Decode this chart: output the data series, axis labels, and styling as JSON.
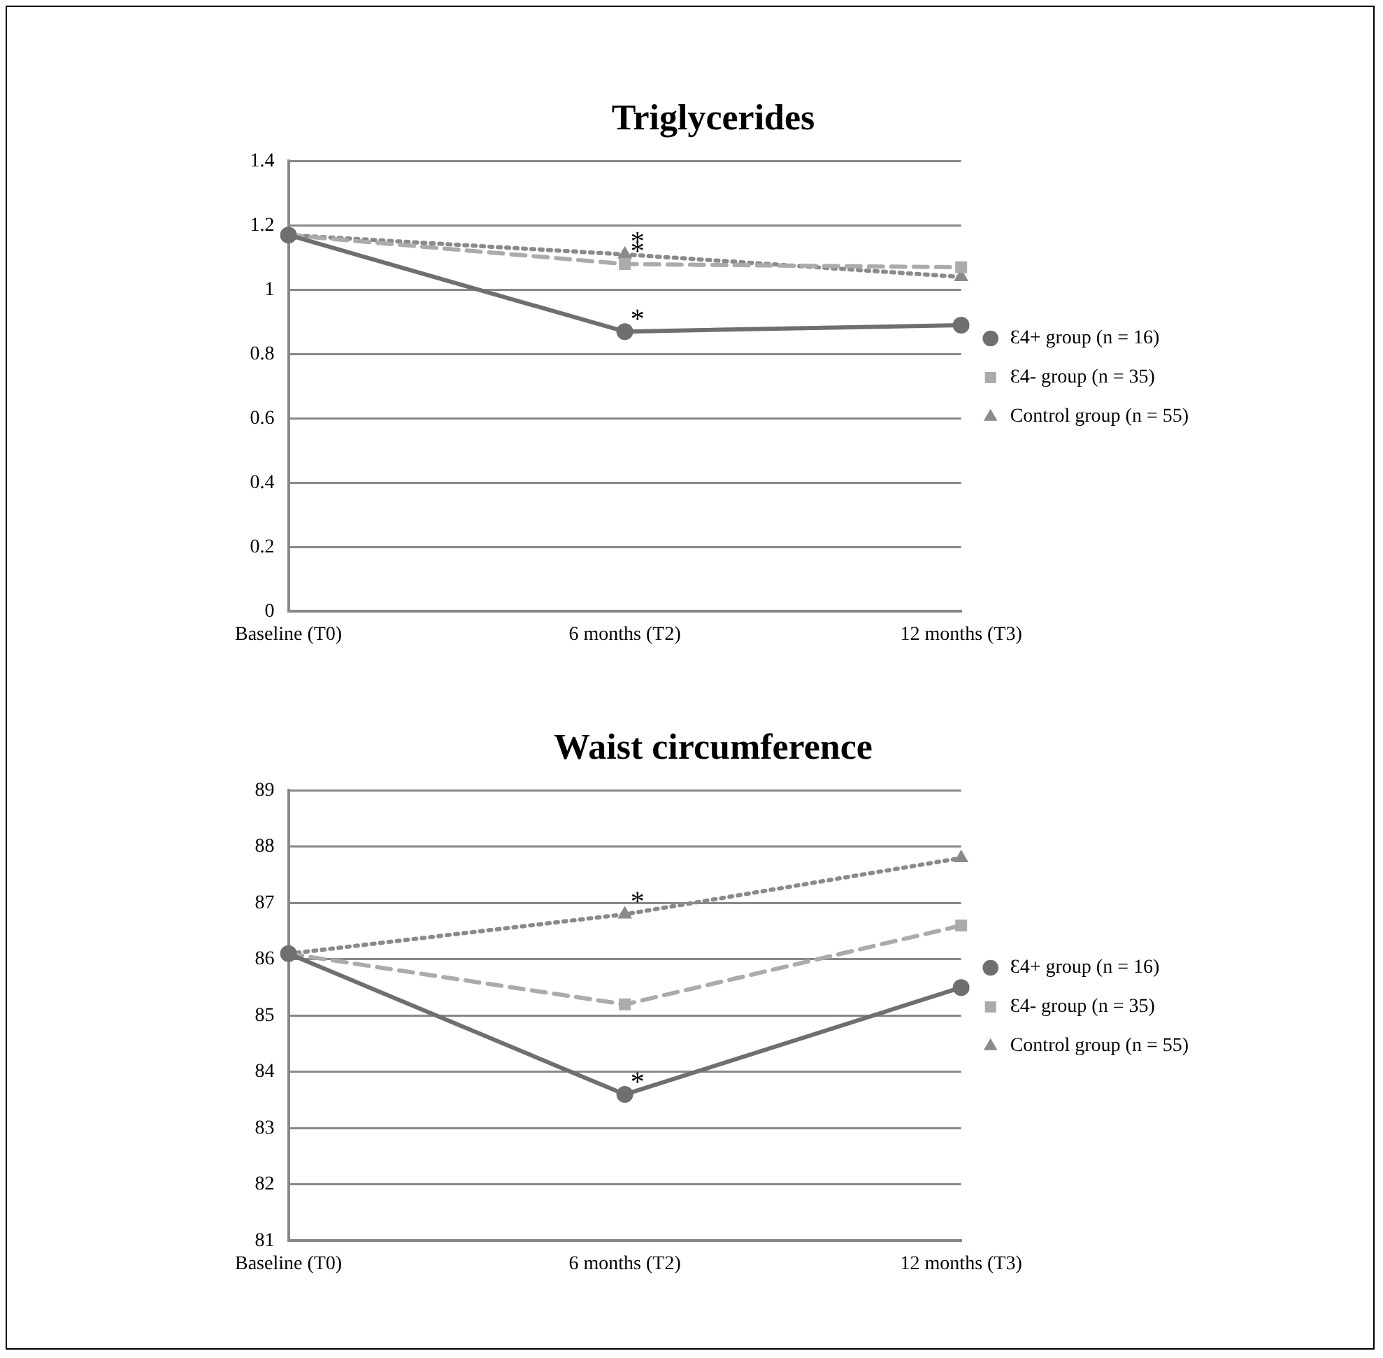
{
  "chart_data": [
    {
      "type": "line",
      "title": "Triglycerides",
      "categories": [
        "Baseline (T0)",
        "6 months (T2)",
        "12 months (T3)"
      ],
      "series": [
        {
          "name": "Ɛ4+ group (n = 16)",
          "color": "#6f6f6f",
          "values": [
            1.17,
            0.87,
            0.89
          ],
          "marker": "circle",
          "line_style": "solid"
        },
        {
          "name": "Ɛ4- group (n = 35)",
          "color": "#ababab",
          "values": [
            1.17,
            1.08,
            1.07
          ],
          "marker": "square",
          "line_style": "dashed"
        },
        {
          "name": "Control group (n = 55)",
          "color": "#8a8a8a",
          "values": [
            1.17,
            1.11,
            1.04
          ],
          "marker": "triangle",
          "line_style": "dotted"
        }
      ],
      "ylim": [
        0,
        1.4
      ],
      "yticks": [
        0,
        0.2,
        0.4,
        0.6,
        0.8,
        1,
        1.2,
        1.4
      ],
      "grid": "y",
      "legend": "right",
      "annotations": [
        {
          "text": "*",
          "x": "6 months (T2)",
          "y": 1.11
        },
        {
          "text": "*",
          "x": "6 months (T2)",
          "y": 1.08
        },
        {
          "text": "*",
          "x": "6 months (T2)",
          "y": 0.87
        }
      ]
    },
    {
      "type": "line",
      "title": "Waist circumference",
      "categories": [
        "Baseline (T0)",
        "6 months (T2)",
        "12 months (T3)"
      ],
      "series": [
        {
          "name": "Ɛ4+ group (n = 16)",
          "color": "#6f6f6f",
          "values": [
            86.1,
            83.6,
            85.5
          ],
          "marker": "circle",
          "line_style": "solid"
        },
        {
          "name": "Ɛ4- group (n = 35)",
          "color": "#ababab",
          "values": [
            86.1,
            85.2,
            86.6
          ],
          "marker": "square",
          "line_style": "dashed"
        },
        {
          "name": "Control group (n = 55)",
          "color": "#8a8a8a",
          "values": [
            86.1,
            86.8,
            87.8
          ],
          "marker": "triangle",
          "line_style": "dotted"
        }
      ],
      "ylim": [
        81,
        89
      ],
      "yticks": [
        81,
        82,
        83,
        84,
        85,
        86,
        87,
        88,
        89
      ],
      "grid": "y",
      "legend": "right",
      "annotations": [
        {
          "text": "*",
          "x": "6 months (T2)",
          "y": 86.8
        },
        {
          "text": "*",
          "x": "6 months (T2)",
          "y": 83.6
        }
      ]
    }
  ]
}
